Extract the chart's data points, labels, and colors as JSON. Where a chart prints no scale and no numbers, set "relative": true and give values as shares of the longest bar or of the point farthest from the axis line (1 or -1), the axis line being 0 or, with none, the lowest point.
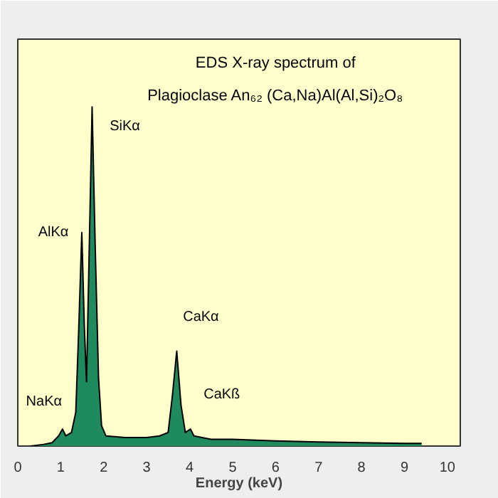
{
  "chart_data": {
    "type": "area",
    "relative": true,
    "title": "EDS X-ray spectrum of",
    "subtitle": "Plagioclase An₆₂ (Ca,Na)Al(Al,Si)₂O₈",
    "xlabel": "Energy (keV)",
    "xlim": [
      0,
      10.3
    ],
    "xticks": [
      0,
      1,
      2,
      3,
      4,
      5,
      6,
      7,
      8,
      9,
      10
    ],
    "grid": false,
    "tick_labels": "x",
    "x": [
      0.3,
      0.6,
      0.8,
      0.95,
      1.04,
      1.12,
      1.25,
      1.35,
      1.42,
      1.49,
      1.55,
      1.6,
      1.65,
      1.73,
      1.8,
      1.88,
      1.95,
      2.05,
      2.5,
      3.0,
      3.3,
      3.5,
      3.6,
      3.7,
      3.8,
      3.9,
      4.02,
      4.1,
      4.5,
      5,
      6,
      7,
      8,
      9,
      9.4
    ],
    "series": [
      {
        "color": "#1f8a5e",
        "values": [
          0,
          0.005,
          0.01,
          0.03,
          0.05,
          0.03,
          0.04,
          0.1,
          0.35,
          0.63,
          0.35,
          0.19,
          0.5,
          1.0,
          0.6,
          0.2,
          0.06,
          0.03,
          0.025,
          0.025,
          0.03,
          0.04,
          0.15,
          0.28,
          0.12,
          0.04,
          0.05,
          0.03,
          0.02,
          0.02,
          0.015,
          0.012,
          0.01,
          0.008,
          0.008
        ]
      }
    ],
    "annotations": [
      {
        "text": "NaKα",
        "x": 1.04,
        "y": 0.05
      },
      {
        "text": "AlKα",
        "x": 1.49,
        "y": 0.63
      },
      {
        "text": "SiKα",
        "x": 1.73,
        "y": 1.0
      },
      {
        "text": "CaKα",
        "x": 3.7,
        "y": 0.28
      },
      {
        "text": "CaKß",
        "x": 4.02,
        "y": 0.05
      }
    ]
  }
}
